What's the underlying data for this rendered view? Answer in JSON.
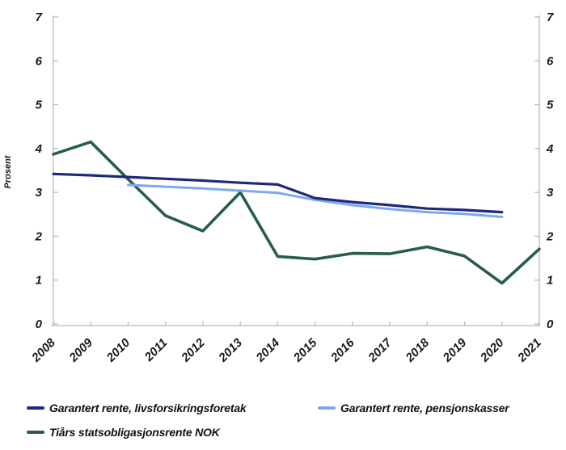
{
  "figure": {
    "background": "#ffffff",
    "axis_color": "#b9b9b9",
    "label_color": "#1a1a1a"
  },
  "chart_data": {
    "type": "line",
    "title": "",
    "ylabel": "Prosent",
    "xlabel": "",
    "x": [
      2008,
      2009,
      2010,
      2011,
      2012,
      2013,
      2014,
      2015,
      2016,
      2017,
      2018,
      2019,
      2020,
      2021
    ],
    "ylim": [
      0,
      7
    ],
    "yticks": [
      0,
      1,
      2,
      3,
      4,
      5,
      6,
      7
    ],
    "grid": false,
    "dual_axis_labels": true,
    "legend_position": "bottom-left",
    "series": [
      {
        "name": "Garantert rente, livsforsikringsforetak",
        "color": "#20287c",
        "stroke_width": 3.2,
        "values": [
          3.42,
          3.39,
          3.35,
          3.31,
          3.27,
          3.22,
          3.18,
          2.87,
          2.78,
          2.71,
          2.63,
          2.6,
          2.55,
          null
        ]
      },
      {
        "name": "Garantert rente, pensjonskasser",
        "color": "#7fa7f0",
        "stroke_width": 3.0,
        "values": [
          null,
          null,
          3.17,
          3.13,
          3.09,
          3.04,
          2.99,
          2.83,
          2.71,
          2.62,
          2.55,
          2.51,
          2.44,
          null
        ]
      },
      {
        "name": "Tiårs statsobligasjonsrente NOK",
        "color": "#265e4a",
        "stroke_width": 3.6,
        "values": [
          3.87,
          4.15,
          3.3,
          2.47,
          2.12,
          3.0,
          1.54,
          1.48,
          1.61,
          1.6,
          1.76,
          1.55,
          0.93,
          1.71
        ]
      }
    ]
  }
}
